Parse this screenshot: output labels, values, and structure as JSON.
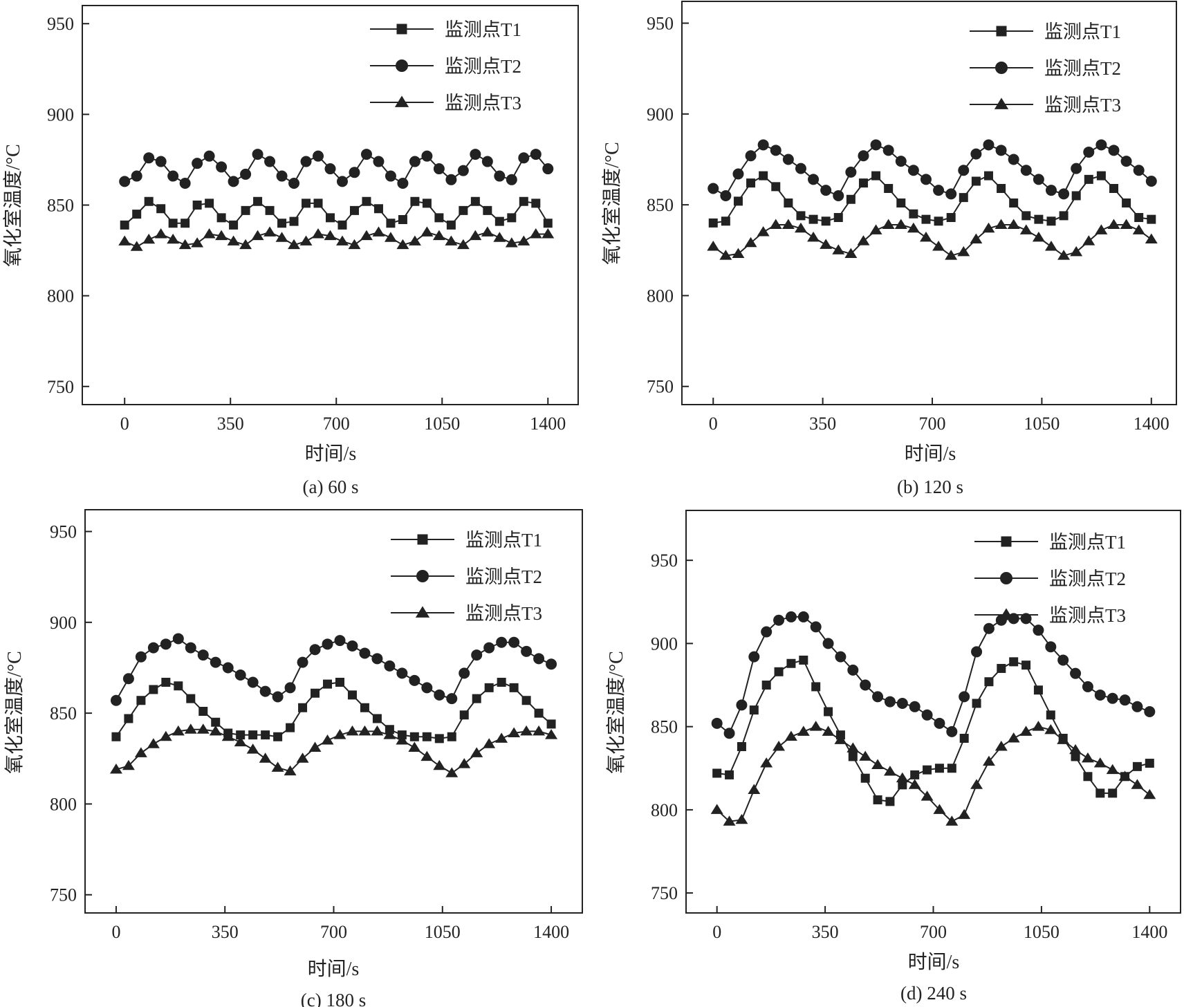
{
  "figure": {
    "panels": [
      {
        "id": "a",
        "caption": "(a) 60 s",
        "chart_data": {
          "type": "line",
          "xlabel": "时间/s",
          "ylabel": "氧化室温度/°C",
          "xlim": [
            -140,
            1500
          ],
          "ylim": [
            740,
            960
          ],
          "xticks": [
            0,
            350,
            700,
            1050,
            1400
          ],
          "yticks": [
            750,
            800,
            850,
            900,
            950
          ],
          "grid": false,
          "legend_position": "top-right",
          "x": [
            0,
            40,
            80,
            120,
            160,
            200,
            240,
            280,
            320,
            360,
            400,
            440,
            480,
            520,
            560,
            600,
            640,
            680,
            720,
            760,
            800,
            840,
            880,
            920,
            960,
            1000,
            1040,
            1080,
            1120,
            1160,
            1200,
            1240,
            1280,
            1320,
            1360,
            1400
          ],
          "series": [
            {
              "name": "监测点T1",
              "marker": "square",
              "values": [
                839,
                845,
                852,
                848,
                840,
                840,
                850,
                851,
                843,
                839,
                847,
                852,
                847,
                840,
                841,
                851,
                851,
                843,
                839,
                847,
                852,
                848,
                840,
                842,
                852,
                851,
                843,
                839,
                847,
                852,
                847,
                841,
                843,
                852,
                851,
                840
              ]
            },
            {
              "name": "监测点T2",
              "marker": "circle",
              "values": [
                863,
                866,
                876,
                874,
                866,
                862,
                873,
                877,
                871,
                863,
                867,
                878,
                874,
                866,
                862,
                874,
                877,
                870,
                863,
                868,
                878,
                874,
                866,
                862,
                874,
                877,
                870,
                864,
                869,
                878,
                874,
                866,
                864,
                876,
                878,
                870
              ]
            },
            {
              "name": "监测点T3",
              "marker": "triangle",
              "values": [
                830,
                827,
                831,
                834,
                831,
                828,
                829,
                834,
                833,
                830,
                828,
                833,
                835,
                832,
                828,
                830,
                834,
                833,
                830,
                828,
                833,
                835,
                832,
                828,
                830,
                835,
                833,
                830,
                828,
                833,
                835,
                832,
                829,
                830,
                834,
                834
              ]
            }
          ]
        }
      },
      {
        "id": "b",
        "caption": "(b) 120 s",
        "chart_data": {
          "type": "line",
          "xlabel": "时间/s",
          "ylabel": "氧化室温度/°C",
          "xlim": [
            -100,
            1480
          ],
          "ylim": [
            740,
            962
          ],
          "xticks": [
            0,
            350,
            700,
            1050,
            1400
          ],
          "yticks": [
            750,
            800,
            850,
            900,
            950
          ],
          "grid": false,
          "legend_position": "top-right",
          "x": [
            0,
            40,
            80,
            120,
            160,
            200,
            240,
            280,
            320,
            360,
            400,
            440,
            480,
            520,
            560,
            600,
            640,
            680,
            720,
            760,
            800,
            840,
            880,
            920,
            960,
            1000,
            1040,
            1080,
            1120,
            1160,
            1200,
            1240,
            1280,
            1320,
            1360,
            1400
          ],
          "series": [
            {
              "name": "监测点T1",
              "marker": "square",
              "values": [
                840,
                841,
                852,
                862,
                866,
                860,
                851,
                844,
                842,
                841,
                843,
                853,
                862,
                866,
                859,
                851,
                845,
                842,
                841,
                843,
                854,
                863,
                866,
                859,
                851,
                844,
                842,
                841,
                844,
                855,
                864,
                866,
                859,
                851,
                843,
                842
              ]
            },
            {
              "name": "监测点T2",
              "marker": "circle",
              "values": [
                859,
                855,
                867,
                877,
                883,
                880,
                875,
                870,
                864,
                858,
                855,
                868,
                877,
                883,
                880,
                874,
                869,
                864,
                858,
                856,
                869,
                878,
                883,
                880,
                875,
                869,
                864,
                858,
                856,
                870,
                879,
                883,
                880,
                874,
                869,
                863
              ]
            },
            {
              "name": "监测点T3",
              "marker": "triangle",
              "values": [
                827,
                822,
                823,
                829,
                835,
                839,
                839,
                837,
                832,
                828,
                825,
                823,
                830,
                836,
                839,
                839,
                837,
                832,
                827,
                822,
                824,
                831,
                837,
                839,
                839,
                836,
                832,
                827,
                822,
                824,
                830,
                836,
                839,
                839,
                836,
                831
              ]
            }
          ]
        }
      },
      {
        "id": "c",
        "caption": "(c) 180 s",
        "chart_data": {
          "type": "line",
          "xlabel": "时间/s",
          "ylabel": "氧化室温度/°C",
          "xlim": [
            -100,
            1500
          ],
          "ylim": [
            740,
            962
          ],
          "xticks": [
            0,
            350,
            700,
            1050,
            1400
          ],
          "yticks": [
            750,
            800,
            850,
            900,
            950
          ],
          "grid": false,
          "legend_position": "top-right",
          "x": [
            0,
            40,
            80,
            120,
            160,
            200,
            240,
            280,
            320,
            360,
            400,
            440,
            480,
            520,
            560,
            600,
            640,
            680,
            720,
            760,
            800,
            840,
            880,
            920,
            960,
            1000,
            1040,
            1080,
            1120,
            1160,
            1200,
            1240,
            1280,
            1320,
            1360,
            1400
          ],
          "series": [
            {
              "name": "监测点T1",
              "marker": "square",
              "values": [
                837,
                847,
                857,
                863,
                867,
                865,
                858,
                851,
                845,
                839,
                838,
                838,
                838,
                837,
                842,
                853,
                861,
                866,
                867,
                860,
                853,
                847,
                841,
                838,
                837,
                837,
                836,
                837,
                849,
                858,
                864,
                867,
                864,
                857,
                850,
                844
              ]
            },
            {
              "name": "监测点T2",
              "marker": "circle",
              "values": [
                857,
                869,
                881,
                886,
                888,
                891,
                886,
                882,
                878,
                875,
                871,
                867,
                862,
                859,
                864,
                878,
                885,
                888,
                890,
                887,
                883,
                880,
                876,
                872,
                868,
                864,
                860,
                858,
                872,
                882,
                886,
                889,
                889,
                884,
                880,
                877
              ]
            },
            {
              "name": "监测点T3",
              "marker": "triangle",
              "values": [
                819,
                821,
                828,
                833,
                837,
                840,
                841,
                841,
                840,
                837,
                834,
                830,
                825,
                820,
                818,
                825,
                831,
                835,
                838,
                840,
                840,
                840,
                838,
                835,
                831,
                826,
                821,
                817,
                822,
                828,
                833,
                836,
                839,
                840,
                840,
                838
              ]
            }
          ]
        }
      },
      {
        "id": "d",
        "caption": "(d) 240 s",
        "chart_data": {
          "type": "line",
          "xlabel": "时间/s",
          "ylabel": "氧化室温度/°C",
          "xlim": [
            -100,
            1500
          ],
          "ylim": [
            738,
            980
          ],
          "xticks": [
            0,
            350,
            700,
            1050,
            1400
          ],
          "yticks": [
            750,
            800,
            850,
            900,
            950
          ],
          "grid": false,
          "legend_position": "top-right",
          "x": [
            0,
            40,
            80,
            120,
            160,
            200,
            240,
            280,
            320,
            360,
            400,
            440,
            480,
            520,
            560,
            600,
            640,
            680,
            720,
            760,
            800,
            840,
            880,
            920,
            960,
            1000,
            1040,
            1080,
            1120,
            1160,
            1200,
            1240,
            1280,
            1320,
            1360,
            1400
          ],
          "series": [
            {
              "name": "监测点T1",
              "marker": "square",
              "values": [
                822,
                821,
                838,
                860,
                875,
                883,
                888,
                890,
                874,
                859,
                845,
                832,
                819,
                806,
                805,
                815,
                821,
                824,
                825,
                825,
                843,
                864,
                877,
                885,
                889,
                887,
                872,
                857,
                843,
                832,
                820,
                810,
                810,
                820,
                826,
                828
              ]
            },
            {
              "name": "监测点T2",
              "marker": "circle",
              "values": [
                852,
                846,
                863,
                892,
                907,
                914,
                916,
                916,
                910,
                900,
                892,
                884,
                875,
                868,
                865,
                864,
                862,
                857,
                852,
                847,
                868,
                895,
                909,
                914,
                915,
                915,
                908,
                898,
                890,
                882,
                874,
                869,
                867,
                866,
                862,
                859
              ]
            },
            {
              "name": "监测点T3",
              "marker": "triangle",
              "values": [
                800,
                793,
                794,
                812,
                828,
                838,
                844,
                847,
                850,
                847,
                842,
                837,
                832,
                827,
                823,
                819,
                815,
                808,
                800,
                793,
                797,
                815,
                829,
                838,
                843,
                847,
                850,
                848,
                842,
                836,
                831,
                828,
                824,
                820,
                815,
                809
              ]
            }
          ]
        }
      }
    ]
  }
}
